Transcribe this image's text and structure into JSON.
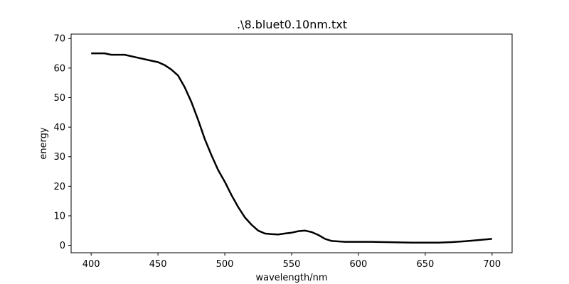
{
  "chart_data": {
    "type": "line",
    "title": ".\\8.bluet0.10nm.txt",
    "xlabel": "wavelength/nm",
    "ylabel": "energy",
    "xlim": [
      385,
      715
    ],
    "ylim": [
      -2.5,
      71.5
    ],
    "x_ticks": [
      400,
      450,
      500,
      550,
      600,
      650,
      700
    ],
    "y_ticks": [
      0,
      10,
      20,
      30,
      40,
      50,
      60,
      70
    ],
    "grid": false,
    "legend": "none",
    "line_color": "#000000",
    "series": [
      {
        "x": [
          400,
          405,
          410,
          415,
          420,
          425,
          430,
          435,
          440,
          445,
          450,
          455,
          460,
          465,
          470,
          475,
          480,
          485,
          490,
          495,
          500,
          505,
          510,
          515,
          520,
          525,
          530,
          535,
          540,
          545,
          550,
          555,
          560,
          565,
          570,
          575,
          580,
          590,
          600,
          610,
          620,
          630,
          640,
          650,
          660,
          670,
          680,
          690,
          700
        ],
        "y": [
          65,
          65,
          65,
          64.5,
          64.5,
          64.5,
          64,
          63.5,
          63,
          62.5,
          62,
          61,
          59.5,
          57.5,
          53.5,
          48.5,
          42.5,
          36,
          30.5,
          25.5,
          21.5,
          17,
          13,
          9.5,
          7,
          5,
          4,
          3.8,
          3.7,
          4,
          4.3,
          4.8,
          5,
          4.5,
          3.5,
          2.2,
          1.5,
          1.2,
          1.2,
          1.2,
          1.1,
          1.0,
          0.9,
          0.9,
          0.9,
          1.1,
          1.4,
          1.8,
          2.2
        ]
      }
    ]
  }
}
